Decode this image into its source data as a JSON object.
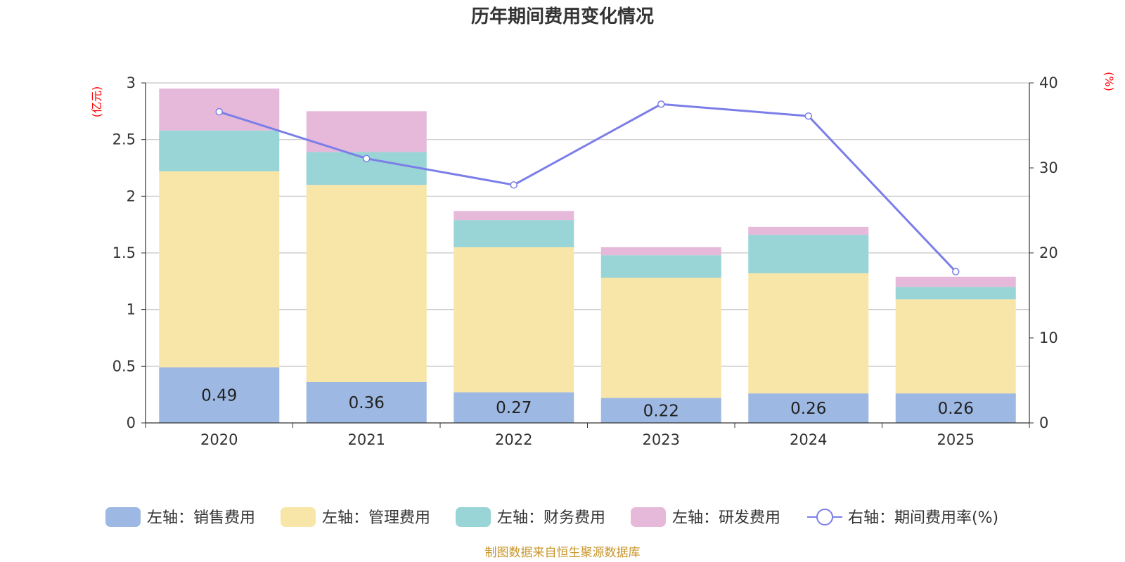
{
  "chart_data": {
    "type": "bar",
    "title": "历年期间费用变化情况",
    "categories": [
      "2020",
      "2021",
      "2022",
      "2023",
      "2024",
      "2025"
    ],
    "left_axis": {
      "unit": "(亿元)",
      "ylim": [
        0,
        3
      ],
      "ticks": [
        "0",
        "0.5",
        "1",
        "1.5",
        "2",
        "2.5",
        "3"
      ]
    },
    "right_axis": {
      "unit": "(%)",
      "ylim": [
        0,
        40
      ],
      "ticks": [
        "0",
        "10",
        "20",
        "30",
        "40"
      ]
    },
    "series": [
      {
        "name": "左轴：销售费用",
        "stack": true,
        "color": "#9db8e2",
        "values": [
          0.49,
          0.36,
          0.27,
          0.22,
          0.26,
          0.26
        ],
        "labels": [
          "0.49",
          "0.36",
          "0.27",
          "0.22",
          "0.26",
          "0.26"
        ]
      },
      {
        "name": "左轴：管理费用",
        "stack": true,
        "color": "#f8e6a9",
        "values": [
          1.73,
          1.74,
          1.28,
          1.06,
          1.06,
          0.83
        ]
      },
      {
        "name": "左轴：财务费用",
        "stack": true,
        "color": "#99d4d6",
        "values": [
          0.36,
          0.29,
          0.24,
          0.2,
          0.34,
          0.11
        ]
      },
      {
        "name": "左轴：研发费用",
        "stack": true,
        "color": "#e6b9da",
        "values": [
          0.37,
          0.36,
          0.08,
          0.07,
          0.07,
          0.09
        ]
      },
      {
        "name": "右轴：期间费用率(%)",
        "type": "line",
        "axis": "right",
        "color": "#7b7ee8",
        "values": [
          36.6,
          31.1,
          28.0,
          37.5,
          36.1,
          17.8
        ]
      }
    ],
    "grid": true,
    "legend_position": "bottom"
  },
  "footer": {
    "source": "制图数据来自恒生聚源数据库"
  }
}
